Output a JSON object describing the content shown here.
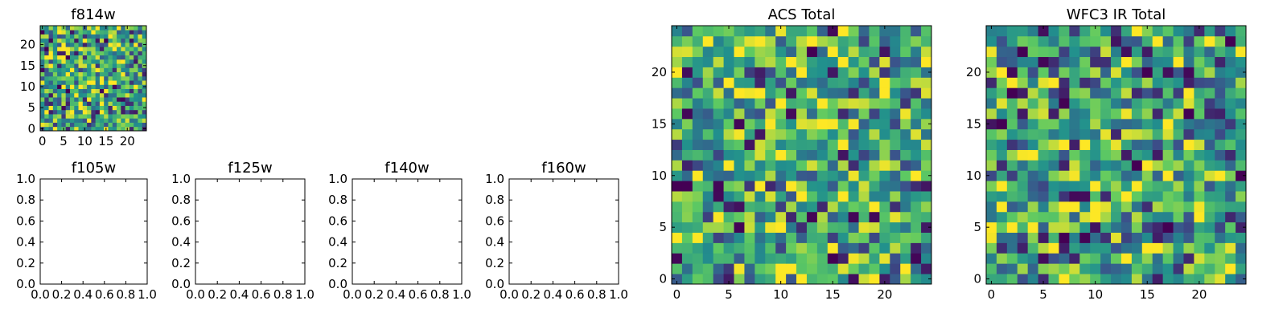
{
  "chart_data": [
    {
      "type": "heatmap",
      "title": "f814w",
      "rows": 25,
      "cols": 25,
      "seed": 814,
      "xticks": [
        "0",
        "5",
        "10",
        "15",
        "20"
      ],
      "yticks": [
        "0",
        "5",
        "10",
        "15",
        "20"
      ],
      "xlim": [
        -0.5,
        24.5
      ],
      "ylim": [
        -0.5,
        24.5
      ]
    },
    {
      "type": "empty",
      "title": "f105w",
      "xticks": [
        "0.0",
        "0.2",
        "0.4",
        "0.6",
        "0.8",
        "1.0"
      ],
      "yticks": [
        "0.0",
        "0.2",
        "0.4",
        "0.6",
        "0.8",
        "1.0"
      ],
      "xlim": [
        0,
        1
      ],
      "ylim": [
        0,
        1
      ]
    },
    {
      "type": "empty",
      "title": "f125w",
      "xticks": [
        "0.0",
        "0.2",
        "0.4",
        "0.6",
        "0.8",
        "1.0"
      ],
      "yticks": [
        "0.0",
        "0.2",
        "0.4",
        "0.6",
        "0.8",
        "1.0"
      ],
      "xlim": [
        0,
        1
      ],
      "ylim": [
        0,
        1
      ]
    },
    {
      "type": "empty",
      "title": "f140w",
      "xticks": [
        "0.0",
        "0.2",
        "0.4",
        "0.6",
        "0.8",
        "1.0"
      ],
      "yticks": [
        "0.0",
        "0.2",
        "0.4",
        "0.6",
        "0.8",
        "1.0"
      ],
      "xlim": [
        0,
        1
      ],
      "ylim": [
        0,
        1
      ]
    },
    {
      "type": "empty",
      "title": "f160w",
      "xticks": [
        "0.0",
        "0.2",
        "0.4",
        "0.6",
        "0.8",
        "1.0"
      ],
      "yticks": [
        "0.0",
        "0.2",
        "0.4",
        "0.6",
        "0.8",
        "1.0"
      ],
      "xlim": [
        0,
        1
      ],
      "ylim": [
        0,
        1
      ]
    },
    {
      "type": "heatmap",
      "title": "ACS Total",
      "rows": 25,
      "cols": 25,
      "seed": 1001,
      "xticks": [
        "0",
        "5",
        "10",
        "15",
        "20"
      ],
      "yticks": [
        "0",
        "5",
        "10",
        "15",
        "20"
      ],
      "xlim": [
        -0.5,
        24.5
      ],
      "ylim": [
        -0.5,
        24.5
      ]
    },
    {
      "type": "heatmap",
      "title": "WFC3 IR Total",
      "rows": 25,
      "cols": 25,
      "seed": 2002,
      "xticks": [
        "0",
        "5",
        "10",
        "15",
        "20"
      ],
      "yticks": [
        "0",
        "5",
        "10",
        "15",
        "20"
      ],
      "xlim": [
        -0.5,
        24.5
      ],
      "ylim": [
        -0.5,
        24.5
      ]
    }
  ],
  "colormap": [
    "#440154",
    "#3b528b",
    "#21908d",
    "#5dc962",
    "#fde725"
  ]
}
